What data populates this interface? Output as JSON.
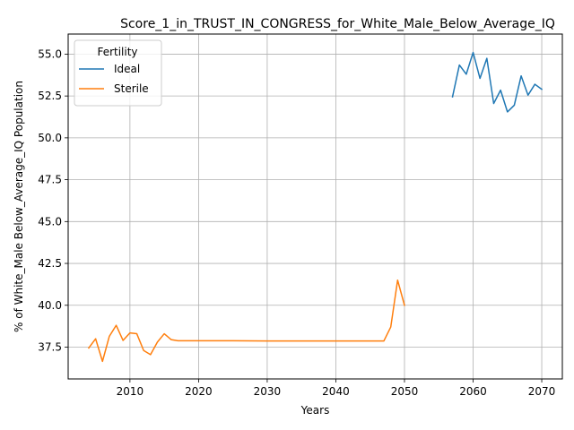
{
  "chart_data": {
    "type": "line",
    "title": "Score_1_in_TRUST_IN_CONGRESS_for_White_Male_Below_Average_IQ",
    "xlabel": "Years",
    "ylabel": "% of White_Male Below_Average_IQ Population",
    "xlim": [
      2001,
      2073
    ],
    "ylim": [
      35.6,
      56.2
    ],
    "x_ticks": [
      2010,
      2020,
      2030,
      2040,
      2050,
      2060,
      2070
    ],
    "y_ticks": [
      37.5,
      40.0,
      42.5,
      45.0,
      47.5,
      50.0,
      52.5,
      55.0
    ],
    "y_tick_labels": [
      "37.5",
      "40.0",
      "42.5",
      "45.0",
      "47.5",
      "50.0",
      "52.5",
      "55.0"
    ],
    "grid": true,
    "legend": {
      "title": "Fertility",
      "placement": "top-left"
    },
    "series": [
      {
        "name": "Ideal",
        "color": "#1f77b4",
        "x": [
          2057,
          2058,
          2059,
          2060,
          2061,
          2062,
          2063,
          2064,
          2065,
          2066,
          2067,
          2068,
          2069,
          2070
        ],
        "y": [
          52.45,
          54.35,
          53.8,
          55.1,
          53.55,
          54.75,
          52.05,
          52.85,
          51.55,
          51.95,
          53.7,
          52.55,
          53.2,
          52.9
        ]
      },
      {
        "name": "Sterile",
        "color": "#ff7f0e",
        "x": [
          2004,
          2005,
          2006,
          2007,
          2008,
          2009,
          2010,
          2011,
          2012,
          2013,
          2014,
          2015,
          2016,
          2017,
          2018,
          2020,
          2025,
          2030,
          2035,
          2040,
          2045,
          2047,
          2048,
          2049,
          2050
        ],
        "y": [
          37.45,
          38.0,
          36.65,
          38.15,
          38.8,
          37.9,
          38.35,
          38.3,
          37.3,
          37.05,
          37.8,
          38.3,
          37.95,
          37.88,
          37.88,
          37.88,
          37.88,
          37.87,
          37.87,
          37.87,
          37.87,
          37.87,
          38.7,
          41.5,
          40.0
        ]
      }
    ]
  }
}
